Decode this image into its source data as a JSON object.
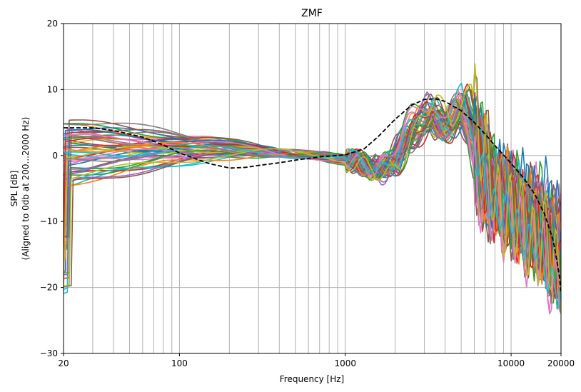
{
  "chart_data": {
    "type": "line",
    "title": "ZMF",
    "xlabel": "Frequency [Hz]",
    "ylabel_lines": [
      "SPL [dB]",
      "(Aligned to 0db at 200...2000 Hz)"
    ],
    "x_scale": "log",
    "xlim": [
      20,
      20000
    ],
    "ylim": [
      -30,
      20
    ],
    "x_ticks": [
      20,
      100,
      1000,
      10000,
      20000
    ],
    "x_tick_labels": [
      "20",
      "100",
      "1000",
      "10000",
      "20000"
    ],
    "y_ticks": [
      -30,
      -20,
      -10,
      0,
      10,
      20
    ],
    "y_tick_labels": [
      "−30",
      "−20",
      "−10",
      "0",
      "10",
      "20"
    ],
    "grid": true,
    "legend": "none",
    "series_count": 50,
    "series_colors": [
      "#1f77b4",
      "#ff7f0e",
      "#2ca02c",
      "#d62728",
      "#9467bd",
      "#8c564b",
      "#e377c2",
      "#7f7f7f",
      "#bcbd22",
      "#17becf"
    ],
    "target_curve": {
      "style": "dashed",
      "color": "#000000",
      "x": [
        20,
        30,
        40,
        60,
        80,
        100,
        150,
        200,
        250,
        300,
        400,
        500,
        700,
        1000,
        1300,
        1600,
        2000,
        2500,
        3000,
        3500,
        4000,
        5000,
        6000,
        7000,
        8000,
        10000,
        12000,
        14000,
        16000,
        18000,
        19500,
        20000
      ],
      "y": [
        4.2,
        4.2,
        3.8,
        2.8,
        1.6,
        0.4,
        -1.2,
        -1.9,
        -1.8,
        -1.5,
        -1.1,
        -0.7,
        -0.2,
        0.1,
        1.0,
        3.0,
        5.5,
        7.6,
        8.5,
        8.6,
        8.2,
        6.8,
        5.0,
        3.2,
        1.5,
        -1.2,
        -3.5,
        -6.0,
        -9.0,
        -13.0,
        -18.0,
        -21.0
      ]
    }
  }
}
